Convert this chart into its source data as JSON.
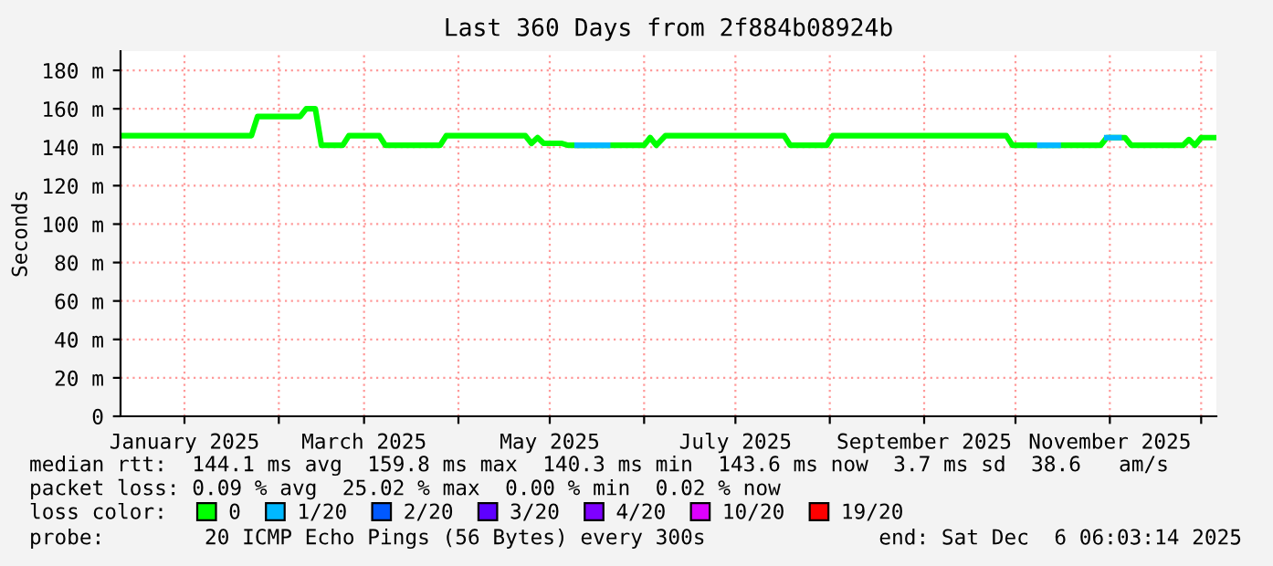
{
  "chart_data": {
    "type": "line",
    "title": "Last 360 Days from 2f884b08924b",
    "ylabel": "Seconds",
    "xlim": [
      "2024-12-11",
      "2025-12-06"
    ],
    "ylim": [
      0,
      190
    ],
    "yticks": [
      0,
      {
        "value": 20,
        "label": "20 m"
      },
      {
        "value": 40,
        "label": "40 m"
      },
      {
        "value": 60,
        "label": "60 m"
      },
      {
        "value": 80,
        "label": "80 m"
      },
      {
        "value": 100,
        "label": "100 m"
      },
      {
        "value": 120,
        "label": "120 m"
      },
      {
        "value": 140,
        "label": "140 m"
      },
      {
        "value": 160,
        "label": "160 m"
      },
      {
        "value": 180,
        "label": "180 m"
      }
    ],
    "xticks": [
      {
        "value": "2025-01-01",
        "label": "January 2025"
      },
      {
        "value": "2025-02-01",
        "label": null
      },
      {
        "value": "2025-03-01",
        "label": "March 2025"
      },
      {
        "value": "2025-04-01",
        "label": null
      },
      {
        "value": "2025-05-01",
        "label": "May 2025"
      },
      {
        "value": "2025-06-01",
        "label": null
      },
      {
        "value": "2025-07-01",
        "label": "July 2025"
      },
      {
        "value": "2025-08-01",
        "label": null
      },
      {
        "value": "2025-09-01",
        "label": "September 2025"
      },
      {
        "value": "2025-10-01",
        "label": null
      },
      {
        "value": "2025-11-01",
        "label": "November 2025"
      },
      {
        "value": "2025-12-01",
        "label": null
      }
    ],
    "grid": true,
    "legend": "bottom",
    "legend_title": "loss color:",
    "series": [
      {
        "name": "0",
        "color": "#00ff00",
        "x": [
          "2024-12-12",
          "2025-01-23",
          "2025-01-25",
          "2025-02-08",
          "2025-02-10",
          "2025-02-13",
          "2025-02-15",
          "2025-02-22",
          "2025-02-24",
          "2025-03-06",
          "2025-03-08",
          "2025-03-26",
          "2025-03-28",
          "2025-04-23",
          "2025-04-25",
          "2025-04-27",
          "2025-04-29",
          "2025-05-05",
          "2025-05-07",
          "2025-06-01",
          "2025-06-03",
          "2025-06-05",
          "2025-06-08",
          "2025-07-17",
          "2025-07-19",
          "2025-07-31",
          "2025-08-02",
          "2025-09-28",
          "2025-09-30",
          "2025-10-29",
          "2025-10-31",
          "2025-11-06",
          "2025-11-08",
          "2025-11-25",
          "2025-11-27",
          "2025-11-29",
          "2025-12-01",
          "2025-12-06"
        ],
        "values": [
          146,
          146,
          156,
          156,
          160,
          160,
          141,
          141,
          146,
          146,
          141,
          141,
          146,
          146,
          142,
          145,
          142,
          142,
          141,
          141,
          145,
          141,
          146,
          146,
          141,
          141,
          146,
          146,
          141,
          141,
          145,
          145,
          141,
          141,
          144,
          141,
          145,
          145
        ]
      },
      {
        "name": "1/20",
        "color": "#00b8ff",
        "x": [
          "2025-05-10",
          "2025-05-20",
          "2025-05-21",
          "2025-10-09",
          "2025-10-15",
          "2025-10-16",
          "2025-10-31",
          "2025-11-04"
        ],
        "values": [
          141,
          141,
          null,
          141,
          141,
          null,
          145,
          145
        ]
      },
      {
        "name": "2/20",
        "color": "#0059ff"
      },
      {
        "name": "3/20",
        "color": "#5e00ff"
      },
      {
        "name": "4/20",
        "color": "#7e00ff"
      },
      {
        "name": "10/20",
        "color": "#dd00ff"
      },
      {
        "name": "19/20",
        "color": "#ff0000"
      }
    ],
    "annotations": [
      "median rtt:  144.1 ms avg  159.8 ms max  140.3 ms min  143.6 ms now  3.7 ms sd  38.6   am/s",
      "packet loss: 0.09 % avg  25.02 % max  0.00 % min  0.02 % now",
      "probe:        20 ICMP Echo Pings (56 Bytes) every 300s",
      "end: Sat Dec  6 06:03:14 2025"
    ]
  }
}
